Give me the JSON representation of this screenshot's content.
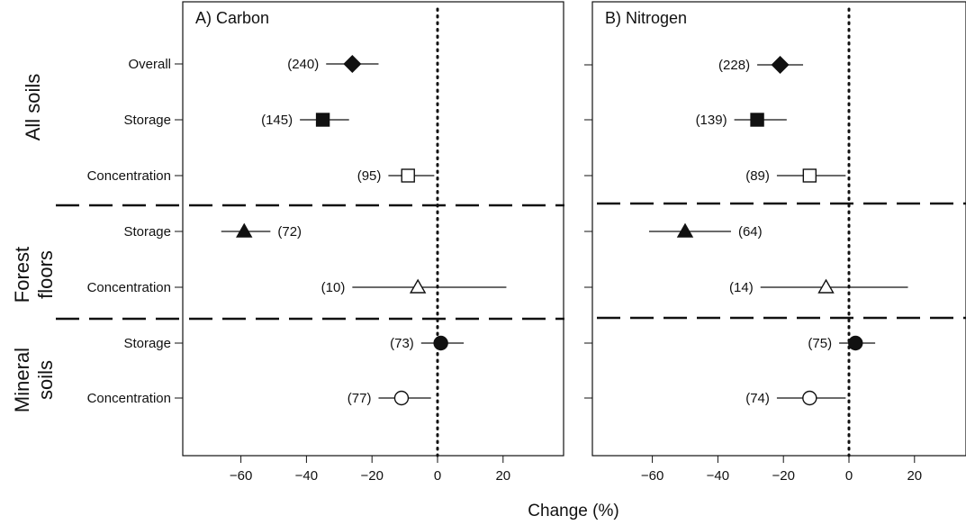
{
  "figure": {
    "xlabel": "Change (%)",
    "groups": [
      {
        "key": "all",
        "label_lines": [
          "All soils"
        ]
      },
      {
        "key": "forest",
        "label_lines": [
          "Forest",
          "floors"
        ]
      },
      {
        "key": "mineral",
        "label_lines": [
          "Mineral",
          "soils"
        ]
      }
    ],
    "rows": [
      "Overall",
      "Storage",
      "Concentration",
      "Storage",
      "Concentration",
      "Storage",
      "Concentration"
    ]
  },
  "chart_data": [
    {
      "type": "scatter",
      "subtype": "forest-plot with error bars",
      "title": "A) Carbon",
      "xlabel": "Change (%)",
      "xlim": [
        -78,
        38
      ],
      "xticks": [
        -60,
        -40,
        -20,
        0,
        20
      ],
      "xtick_labels": [
        "−60",
        "−40",
        "−20",
        "0",
        "20"
      ],
      "reference_line": 0,
      "points": [
        {
          "group": "All soils",
          "row": "Overall",
          "value": -26,
          "lo": -34,
          "hi": -18,
          "n": "(240)",
          "marker": "diamond",
          "fill": "filled",
          "label_side": "left"
        },
        {
          "group": "All soils",
          "row": "Storage",
          "value": -35,
          "lo": -42,
          "hi": -27,
          "n": "(145)",
          "marker": "square",
          "fill": "filled",
          "label_side": "left"
        },
        {
          "group": "All soils",
          "row": "Concentration",
          "value": -9,
          "lo": -15,
          "hi": -1,
          "n": "(95)",
          "marker": "square",
          "fill": "open",
          "label_side": "left"
        },
        {
          "group": "Forest floors",
          "row": "Storage",
          "value": -59,
          "lo": -66,
          "hi": -51,
          "n": "(72)",
          "marker": "triangle",
          "fill": "filled",
          "label_side": "right"
        },
        {
          "group": "Forest floors",
          "row": "Concentration",
          "value": -6,
          "lo": -26,
          "hi": 21,
          "n": "(10)",
          "marker": "triangle",
          "fill": "open",
          "label_side": "left"
        },
        {
          "group": "Mineral soils",
          "row": "Storage",
          "value": 1,
          "lo": -5,
          "hi": 8,
          "n": "(73)",
          "marker": "circle",
          "fill": "filled",
          "label_side": "left"
        },
        {
          "group": "Mineral soils",
          "row": "Concentration",
          "value": -11,
          "lo": -18,
          "hi": -2,
          "n": "(77)",
          "marker": "circle",
          "fill": "open",
          "label_side": "left"
        }
      ]
    },
    {
      "type": "scatter",
      "subtype": "forest-plot with error bars",
      "title": "B) Nitrogen",
      "xlabel": "Change (%)",
      "xlim": [
        -78,
        35
      ],
      "xticks": [
        -60,
        -40,
        -20,
        0,
        20
      ],
      "xtick_labels": [
        "−60",
        "−40",
        "−20",
        "0",
        "20"
      ],
      "reference_line": 0,
      "points": [
        {
          "group": "All soils",
          "row": "Overall",
          "value": -21,
          "lo": -28,
          "hi": -14,
          "n": "(228)",
          "marker": "diamond",
          "fill": "filled",
          "label_side": "left"
        },
        {
          "group": "All soils",
          "row": "Storage",
          "value": -28,
          "lo": -35,
          "hi": -19,
          "n": "(139)",
          "marker": "square",
          "fill": "filled",
          "label_side": "left"
        },
        {
          "group": "All soils",
          "row": "Concentration",
          "value": -12,
          "lo": -22,
          "hi": -1,
          "n": "(89)",
          "marker": "square",
          "fill": "open",
          "label_side": "left"
        },
        {
          "group": "Forest floors",
          "row": "Storage",
          "value": -50,
          "lo": -61,
          "hi": -36,
          "n": "(64)",
          "marker": "triangle",
          "fill": "filled",
          "label_side": "right"
        },
        {
          "group": "Forest floors",
          "row": "Concentration",
          "value": -7,
          "lo": -27,
          "hi": 18,
          "n": "(14)",
          "marker": "triangle",
          "fill": "open",
          "label_side": "left"
        },
        {
          "group": "Mineral soils",
          "row": "Storage",
          "value": 2,
          "lo": -3,
          "hi": 8,
          "n": "(75)",
          "marker": "circle",
          "fill": "filled",
          "label_side": "left"
        },
        {
          "group": "Mineral soils",
          "row": "Concentration",
          "value": -12,
          "lo": -22,
          "hi": -1,
          "n": "(74)",
          "marker": "circle",
          "fill": "open",
          "label_side": "left"
        }
      ]
    }
  ]
}
